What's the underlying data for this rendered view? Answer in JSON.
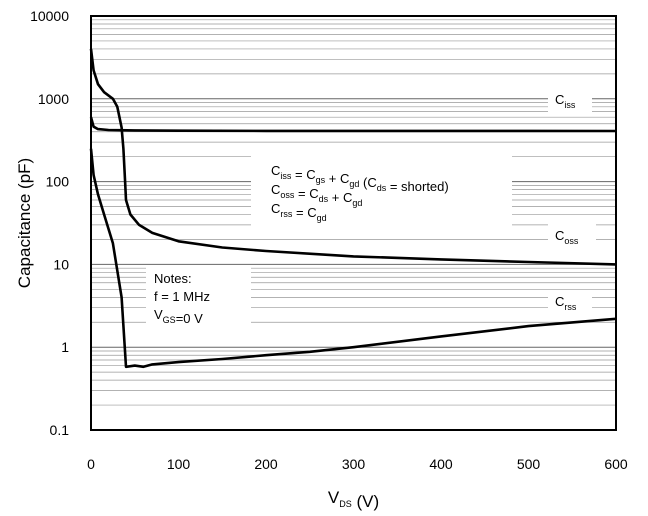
{
  "chart_data": {
    "type": "line",
    "xlabel": {
      "main": "V",
      "sub": "DS",
      "unit": " (V)"
    },
    "ylabel": "Capacitance (pF)",
    "xlim": [
      0,
      600
    ],
    "ylim": [
      0.1,
      10000
    ],
    "yscale": "log",
    "grid": true,
    "x_ticks": [
      "0",
      "100",
      "200",
      "300",
      "400",
      "500",
      "600"
    ],
    "y_ticks": [
      "0.1",
      "1",
      "10",
      "100",
      "1000",
      "10000"
    ],
    "series": [
      {
        "label": {
          "main": "C",
          "sub": "iss"
        },
        "points": [
          [
            0,
            600
          ],
          [
            3,
            460
          ],
          [
            8,
            430
          ],
          [
            20,
            420
          ],
          [
            50,
            415
          ],
          [
            100,
            412
          ],
          [
            200,
            410
          ],
          [
            300,
            410
          ],
          [
            400,
            410
          ],
          [
            500,
            410
          ],
          [
            600,
            408
          ]
        ]
      },
      {
        "label": {
          "main": "C",
          "sub": "oss"
        },
        "points": [
          [
            0,
            4000
          ],
          [
            3,
            2200
          ],
          [
            8,
            1500
          ],
          [
            15,
            1200
          ],
          [
            25,
            1000
          ],
          [
            30,
            800
          ],
          [
            35,
            450
          ],
          [
            37,
            250
          ],
          [
            39,
            100
          ],
          [
            40,
            60
          ],
          [
            45,
            40
          ],
          [
            55,
            30
          ],
          [
            70,
            24
          ],
          [
            100,
            19
          ],
          [
            150,
            16
          ],
          [
            200,
            14.5
          ],
          [
            300,
            12.5
          ],
          [
            400,
            11.5
          ],
          [
            500,
            10.7
          ],
          [
            600,
            10
          ]
        ]
      },
      {
        "label": {
          "main": "C",
          "sub": "rss"
        },
        "points": [
          [
            0,
            250
          ],
          [
            3,
            120
          ],
          [
            8,
            70
          ],
          [
            15,
            40
          ],
          [
            25,
            18
          ],
          [
            35,
            4
          ],
          [
            40,
            0.58
          ],
          [
            50,
            0.6
          ],
          [
            60,
            0.58
          ],
          [
            70,
            0.62
          ],
          [
            100,
            0.66
          ],
          [
            150,
            0.72
          ],
          [
            200,
            0.8
          ],
          [
            250,
            0.88
          ],
          [
            300,
            1.0
          ],
          [
            400,
            1.35
          ],
          [
            500,
            1.8
          ],
          [
            600,
            2.2
          ]
        ]
      }
    ],
    "annotations": {
      "equations": [
        {
          "lhs": {
            "main": "C",
            "sub": "iss"
          },
          "parts": [
            " = ",
            {
              "main": "C",
              "sub": "gs"
            },
            " + ",
            {
              "main": "C",
              "sub": "gd"
            },
            " (",
            {
              "main": "C",
              "sub": "ds"
            },
            " = shorted)"
          ]
        },
        {
          "lhs": {
            "main": "C",
            "sub": "oss"
          },
          "parts": [
            " = ",
            {
              "main": "C",
              "sub": "ds"
            },
            " + ",
            {
              "main": "C",
              "sub": "gd"
            }
          ]
        },
        {
          "lhs": {
            "main": "C",
            "sub": "rss"
          },
          "parts": [
            " = ",
            {
              "main": "C",
              "sub": "gd"
            }
          ]
        }
      ],
      "notes": {
        "title": "Notes:",
        "line1": "f = 1 MHz",
        "line2": {
          "main": "V",
          "sub": "GS",
          "rest": "=0 V"
        }
      }
    }
  }
}
